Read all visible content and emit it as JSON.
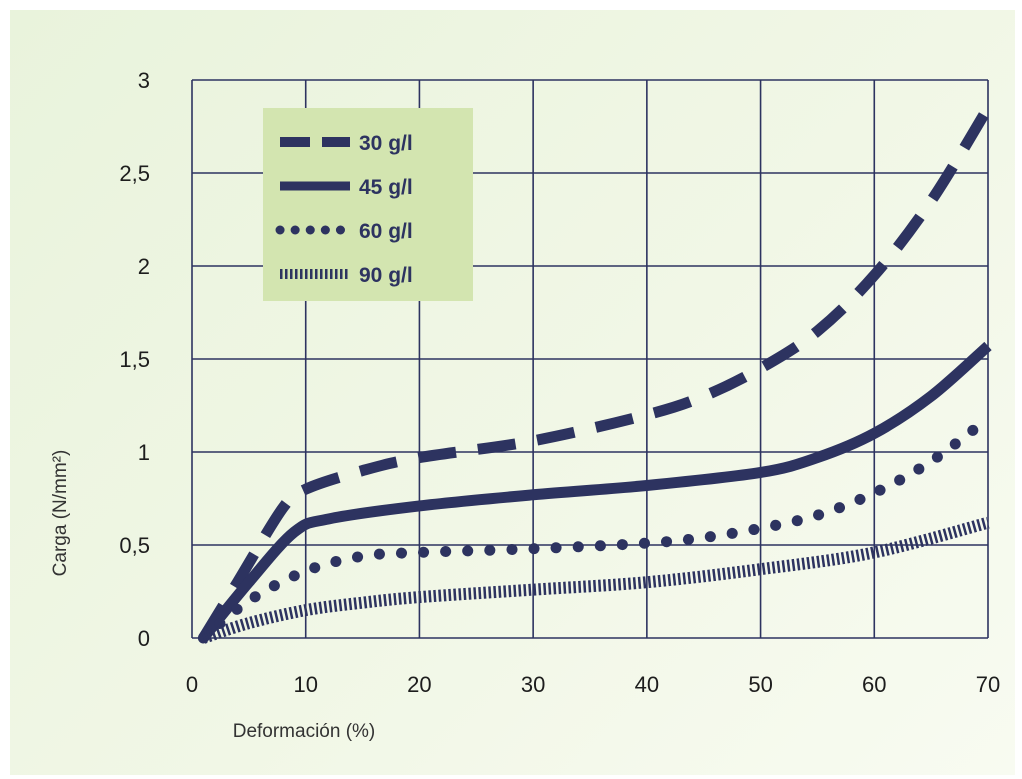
{
  "chart_data": {
    "type": "line",
    "title": "",
    "xlabel": "Deformación (%)",
    "ylabel": "Carga (N/mm²)",
    "xlim": [
      0,
      70
    ],
    "ylim": [
      0,
      3
    ],
    "xticks": [
      0,
      10,
      20,
      30,
      40,
      50,
      60,
      70
    ],
    "xtick_labels": [
      "0",
      "10",
      "20",
      "30",
      "40",
      "50",
      "60",
      "70"
    ],
    "yticks": [
      0,
      0.5,
      1,
      1.5,
      2,
      2.5,
      3
    ],
    "ytick_labels": [
      "0",
      "0,5",
      "1",
      "1,5",
      "2",
      "2,5",
      "3"
    ],
    "grid": true,
    "legend_position": "top-left",
    "line_color": "#2d3360",
    "legend_bg": "#d3e5b0",
    "series": [
      {
        "name": "30 g/l",
        "style": "dashed",
        "x": [
          1,
          4,
          8,
          10,
          15,
          20,
          30,
          40,
          45,
          50,
          55,
          60,
          65,
          70
        ],
        "y": [
          0,
          0.3,
          0.7,
          0.8,
          0.9,
          0.97,
          1.06,
          1.2,
          1.3,
          1.45,
          1.65,
          1.95,
          2.35,
          2.85
        ]
      },
      {
        "name": "45 g/l",
        "style": "solid",
        "x": [
          1,
          5,
          9,
          12,
          20,
          30,
          40,
          50,
          55,
          60,
          65,
          70
        ],
        "y": [
          0,
          0.3,
          0.57,
          0.64,
          0.71,
          0.77,
          0.82,
          0.89,
          0.97,
          1.1,
          1.3,
          1.57
        ]
      },
      {
        "name": "60 g/l",
        "style": "dotted",
        "x": [
          1,
          5,
          10,
          15,
          20,
          30,
          40,
          45,
          50,
          55,
          60,
          65,
          70
        ],
        "y": [
          0,
          0.2,
          0.36,
          0.44,
          0.46,
          0.48,
          0.51,
          0.54,
          0.59,
          0.66,
          0.78,
          0.95,
          1.18
        ]
      },
      {
        "name": "90 g/l",
        "style": "hatched",
        "x": [
          1,
          5,
          10,
          15,
          20,
          30,
          40,
          50,
          60,
          70
        ],
        "y": [
          0,
          0.08,
          0.15,
          0.19,
          0.22,
          0.26,
          0.3,
          0.37,
          0.46,
          0.62
        ]
      }
    ]
  }
}
